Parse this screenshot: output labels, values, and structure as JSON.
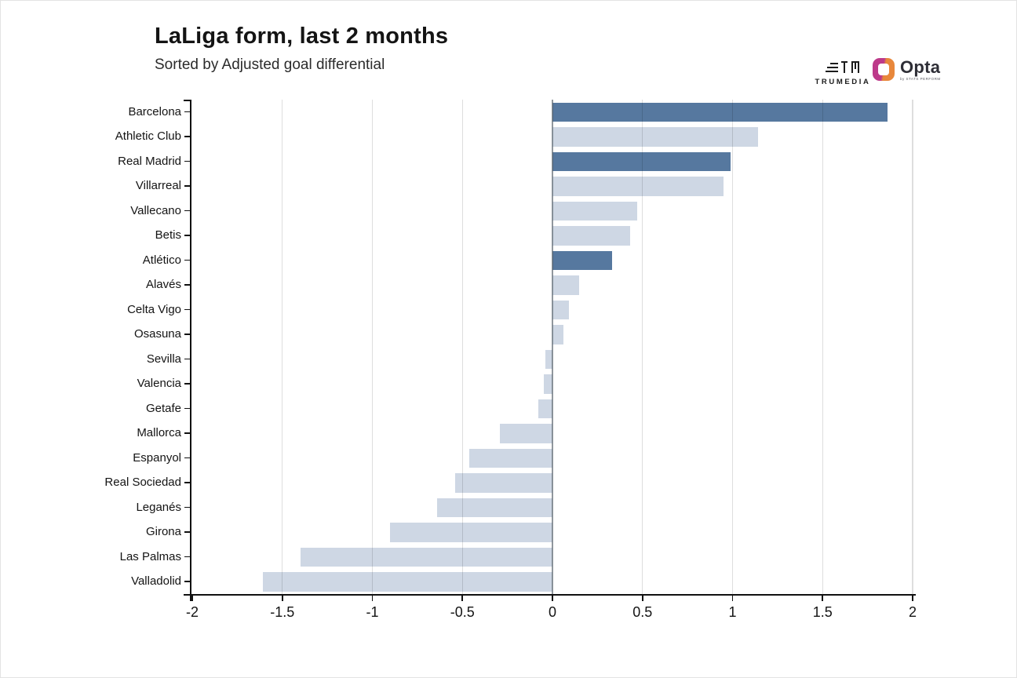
{
  "header": {
    "title": "LaLiga form, last 2 months",
    "subtitle": "Sorted by Adjusted goal differential"
  },
  "branding": {
    "trumedia_label": "TRUMEDIA",
    "opta_label": "Opta",
    "opta_sublabel": "by STATS PERFORM"
  },
  "chart_data": {
    "type": "bar",
    "orientation": "horizontal",
    "title": "LaLiga form, last 2 months",
    "subtitle": "Sorted by Adjusted goal differential",
    "xlabel": "Adjusted goal differential",
    "ylabel": "",
    "xlim": [
      -2,
      2
    ],
    "x_ticks": [
      -2,
      -1.5,
      -1,
      -0.5,
      0,
      0.5,
      1,
      1.5,
      2
    ],
    "x_tick_labels": [
      "-2",
      "-1.5",
      "-1",
      "-0.5",
      "0",
      "0.5",
      "1",
      "1.5",
      "2"
    ],
    "grid": true,
    "legend": false,
    "categories": [
      "Barcelona",
      "Athletic Club",
      "Real Madrid",
      "Villarreal",
      "Vallecano",
      "Betis",
      "Atlético",
      "Alavés",
      "Celta Vigo",
      "Osasuna",
      "Sevilla",
      "Valencia",
      "Getafe",
      "Mallorca",
      "Espanyol",
      "Real Sociedad",
      "Leganés",
      "Girona",
      "Las Palmas",
      "Valladolid"
    ],
    "values": [
      1.86,
      1.14,
      0.99,
      0.95,
      0.47,
      0.43,
      0.33,
      0.15,
      0.09,
      0.06,
      -0.04,
      -0.05,
      -0.08,
      -0.29,
      -0.46,
      -0.54,
      -0.64,
      -0.9,
      -1.4,
      -1.61
    ],
    "highlighted": [
      true,
      false,
      true,
      false,
      false,
      false,
      true,
      false,
      false,
      false,
      false,
      false,
      false,
      false,
      false,
      false,
      false,
      false,
      false,
      false
    ],
    "colors": {
      "highlight_bar": "#56789F",
      "default_bar": "#CED7E4",
      "axis": "#111111"
    }
  }
}
